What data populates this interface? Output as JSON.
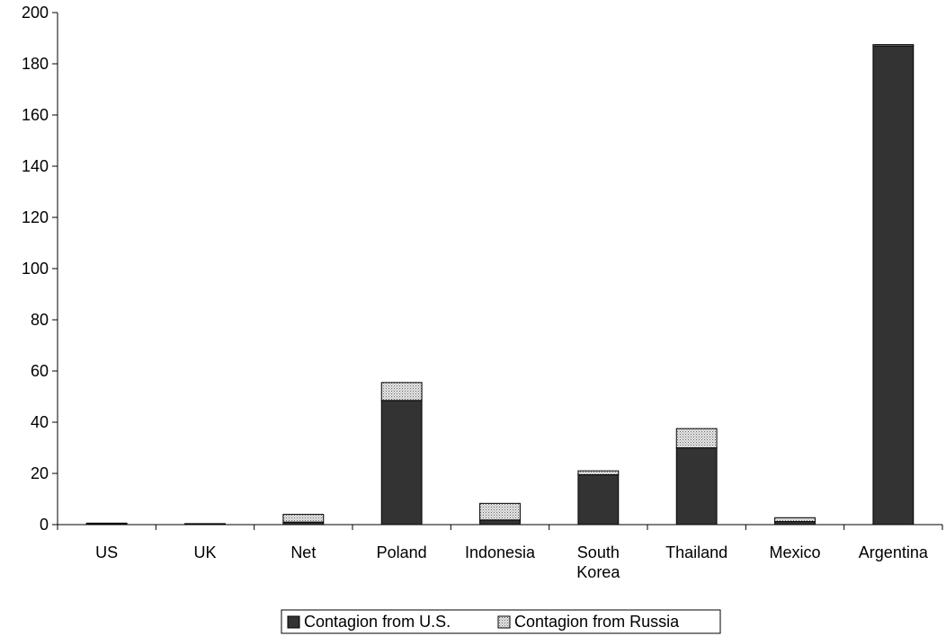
{
  "chart_data": {
    "type": "bar",
    "stacked": true,
    "categories": [
      [
        "US"
      ],
      [
        "UK"
      ],
      [
        "Net"
      ],
      [
        "Poland"
      ],
      [
        "Indonesia"
      ],
      [
        "South",
        "Korea"
      ],
      [
        "Thailand"
      ],
      [
        "Mexico"
      ],
      [
        "Argentina"
      ]
    ],
    "series": [
      {
        "name": "Contagion from U.S.",
        "values": [
          0.3,
          0.1,
          1.0,
          48.5,
          1.8,
          19.5,
          30.0,
          1.2,
          187.0
        ],
        "color": "#333333",
        "pattern": "solid"
      },
      {
        "name": "Contagion from Russia",
        "values": [
          0.2,
          0.1,
          3.0,
          7.0,
          6.5,
          1.5,
          7.5,
          1.5,
          0.5
        ],
        "color": "#d0d0d0",
        "pattern": "dotted"
      }
    ],
    "ylim": [
      0,
      200
    ],
    "yticks": [
      "0",
      "20",
      "40",
      "60",
      "80",
      "100",
      "120",
      "140",
      "160",
      "180",
      "200"
    ],
    "ytick_values": [
      0,
      20,
      40,
      60,
      80,
      100,
      120,
      140,
      160,
      180,
      200
    ],
    "grid": false,
    "legend_position": "bottom",
    "title": "",
    "xlabel": "",
    "ylabel": ""
  }
}
